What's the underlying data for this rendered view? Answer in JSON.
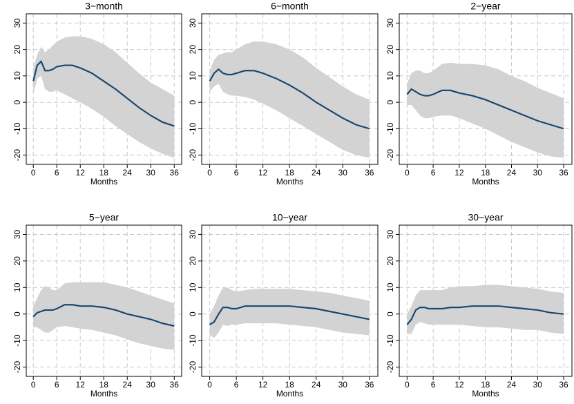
{
  "chart_data": [
    {
      "type": "line",
      "title": "3−month",
      "xlabel": "Months",
      "x": [
        0,
        1,
        2,
        3,
        4,
        5,
        6,
        8,
        10,
        12,
        15,
        18,
        21,
        24,
        27,
        30,
        33,
        36
      ],
      "series": [
        {
          "color": "#1a476f",
          "band_color": "#d3d3d3",
          "values": [
            8,
            14,
            15.5,
            12,
            12,
            12.5,
            13.5,
            14,
            14,
            13,
            11,
            8,
            5,
            1.5,
            -2,
            -5,
            -7.5,
            -9
          ],
          "upper": [
            13,
            18,
            21,
            19,
            20,
            21.5,
            23,
            24.5,
            25,
            25,
            24,
            22,
            19,
            15,
            11,
            7.5,
            5,
            2.5
          ],
          "lower": [
            3,
            9,
            10,
            5,
            4,
            4,
            4.5,
            3,
            1.5,
            0,
            -2.5,
            -5.5,
            -9,
            -12,
            -15,
            -17.5,
            -19.5,
            -21
          ]
        }
      ],
      "xlim": [
        -1.8,
        37.9
      ],
      "ylim": [
        -23.5,
        33.5
      ],
      "xticks": [
        0,
        6,
        12,
        18,
        24,
        30,
        36
      ],
      "yticks": [
        -20,
        -10,
        0,
        10,
        20,
        30
      ],
      "grid": true
    },
    {
      "type": "line",
      "title": "6−month",
      "xlabel": "Months",
      "x": [
        0,
        1,
        2,
        3,
        4,
        5,
        6,
        8,
        10,
        12,
        15,
        18,
        21,
        24,
        27,
        30,
        33,
        36
      ],
      "series": [
        {
          "color": "#1a476f",
          "band_color": "#d3d3d3",
          "values": [
            8,
            11,
            12.5,
            11,
            10.5,
            10.5,
            11,
            12,
            12,
            11,
            9,
            6.5,
            3.5,
            0,
            -3,
            -6,
            -8.5,
            -10
          ],
          "upper": [
            12,
            16,
            18,
            18.5,
            19,
            19,
            20,
            22,
            23,
            23,
            22,
            20,
            17,
            13,
            9.5,
            6,
            3,
            1
          ],
          "lower": [
            4,
            6,
            7,
            4,
            3,
            2.5,
            2.5,
            2,
            1,
            -0.5,
            -3,
            -6,
            -9,
            -12,
            -15,
            -18,
            -20,
            -21
          ]
        }
      ],
      "xlim": [
        -1.8,
        37.9
      ],
      "ylim": [
        -23.5,
        33.5
      ],
      "xticks": [
        0,
        6,
        12,
        18,
        24,
        30,
        36
      ],
      "yticks": [
        -20,
        -10,
        0,
        10,
        20,
        30
      ],
      "grid": true
    },
    {
      "type": "line",
      "title": "2−year",
      "xlabel": "Months",
      "x": [
        0,
        1,
        2,
        3,
        4,
        5,
        6,
        8,
        10,
        12,
        15,
        18,
        21,
        24,
        27,
        30,
        33,
        36
      ],
      "series": [
        {
          "color": "#1a476f",
          "band_color": "#d3d3d3",
          "values": [
            3,
            5,
            4,
            3,
            2.5,
            2.5,
            3,
            4.5,
            4.5,
            3.5,
            2.5,
            1,
            -1,
            -3,
            -5,
            -7,
            -8.5,
            -10
          ],
          "upper": [
            7,
            11,
            12,
            12,
            11,
            11,
            12,
            14.5,
            15,
            14.5,
            14.5,
            14,
            12.5,
            10,
            8,
            5.5,
            3.5,
            1.5
          ],
          "lower": [
            -1,
            -1,
            -3,
            -5,
            -6,
            -6,
            -5.5,
            -5,
            -5,
            -6,
            -8,
            -10,
            -12.5,
            -15,
            -17,
            -19,
            -20.5,
            -21
          ]
        }
      ],
      "xlim": [
        -1.8,
        37.9
      ],
      "ylim": [
        -23.5,
        33.5
      ],
      "xticks": [
        0,
        6,
        12,
        18,
        24,
        30,
        36
      ],
      "yticks": [
        -20,
        -10,
        0,
        10,
        20,
        30
      ],
      "grid": true
    },
    {
      "type": "line",
      "title": "5−year",
      "xlabel": "Months",
      "x": [
        0,
        1,
        2,
        3,
        4,
        5,
        6,
        8,
        10,
        12,
        15,
        18,
        21,
        24,
        27,
        30,
        33,
        36
      ],
      "series": [
        {
          "color": "#1a476f",
          "band_color": "#d3d3d3",
          "values": [
            -1,
            0.5,
            1,
            1.5,
            1.5,
            1.5,
            2,
            3.5,
            3.5,
            3,
            3,
            2.5,
            1.5,
            0,
            -1,
            -2,
            -3.5,
            -4.5
          ],
          "upper": [
            3,
            6,
            9,
            10.5,
            10,
            9,
            9,
            11.5,
            12,
            12,
            12,
            12,
            11,
            10,
            8.5,
            7,
            5.5,
            4
          ],
          "lower": [
            -5,
            -5,
            -6,
            -7,
            -7,
            -6,
            -5,
            -4.5,
            -5,
            -5.5,
            -6,
            -7,
            -8,
            -9.5,
            -11,
            -12,
            -13,
            -13.5
          ]
        }
      ],
      "xlim": [
        -1.8,
        37.9
      ],
      "ylim": [
        -23.5,
        33.5
      ],
      "xticks": [
        0,
        6,
        12,
        18,
        24,
        30,
        36
      ],
      "yticks": [
        -20,
        -10,
        0,
        10,
        20,
        30
      ],
      "grid": true
    },
    {
      "type": "line",
      "title": "10−year",
      "xlabel": "Months",
      "x": [
        0,
        1,
        2,
        3,
        4,
        5,
        6,
        8,
        10,
        12,
        15,
        18,
        21,
        24,
        27,
        30,
        33,
        36
      ],
      "series": [
        {
          "color": "#1a476f",
          "band_color": "#d3d3d3",
          "values": [
            -4,
            -3,
            0,
            2.5,
            2.5,
            2,
            2,
            3,
            3,
            3,
            3,
            3,
            2.5,
            2,
            1,
            0,
            -1,
            -2
          ],
          "upper": [
            0,
            3,
            7,
            10,
            10,
            9,
            8.5,
            9,
            9.5,
            9.5,
            9.5,
            9.5,
            9,
            8.5,
            8,
            7,
            6,
            5
          ],
          "lower": [
            -8,
            -9,
            -7,
            -4,
            -4.5,
            -4,
            -4,
            -3.5,
            -3.5,
            -3.5,
            -3.5,
            -4,
            -4.5,
            -5,
            -6,
            -7,
            -7.5,
            -8
          ]
        }
      ],
      "xlim": [
        -1.8,
        37.9
      ],
      "ylim": [
        -23.5,
        33.5
      ],
      "xticks": [
        0,
        6,
        12,
        18,
        24,
        30,
        36
      ],
      "yticks": [
        -20,
        -10,
        0,
        10,
        20,
        30
      ],
      "grid": true
    },
    {
      "type": "line",
      "title": "30−year",
      "xlabel": "Months",
      "x": [
        0,
        1,
        2,
        3,
        4,
        5,
        6,
        8,
        10,
        12,
        15,
        18,
        21,
        24,
        27,
        30,
        33,
        36
      ],
      "series": [
        {
          "color": "#1a476f",
          "band_color": "#d3d3d3",
          "values": [
            -4,
            -2,
            1.5,
            2.5,
            2.5,
            2,
            2,
            2,
            2.5,
            2.5,
            3,
            3,
            3,
            2.5,
            2,
            1.5,
            0.5,
            0
          ],
          "upper": [
            0,
            3,
            7,
            9,
            9,
            9,
            9,
            9,
            10,
            10.5,
            10.5,
            11,
            11,
            10.5,
            10,
            9.5,
            8.5,
            8
          ],
          "lower": [
            -7.5,
            -7.5,
            -4,
            -3,
            -3.5,
            -4,
            -4,
            -4,
            -4,
            -4,
            -4.5,
            -5,
            -5,
            -5.5,
            -6,
            -6,
            -7,
            -7.5
          ]
        }
      ],
      "xlim": [
        -1.8,
        37.9
      ],
      "ylim": [
        -23.5,
        33.5
      ],
      "xticks": [
        0,
        6,
        12,
        18,
        24,
        30,
        36
      ],
      "yticks": [
        -20,
        -10,
        0,
        10,
        20,
        30
      ],
      "grid": true
    }
  ]
}
